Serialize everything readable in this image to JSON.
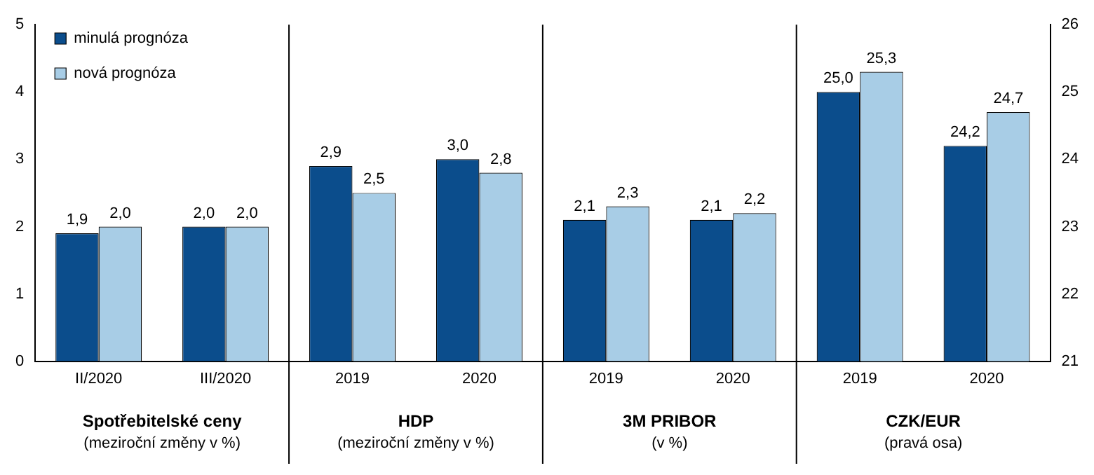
{
  "chart_data": {
    "type": "bar",
    "categories": [
      "II/2020",
      "III/2020",
      "2019",
      "2020",
      "2019",
      "2020",
      "2019",
      "2020"
    ],
    "series": [
      {
        "name": "minulá prognóza",
        "color": "#0b4d8c",
        "values": [
          1.9,
          2.0,
          2.9,
          3.0,
          2.1,
          2.1,
          null,
          null
        ],
        "value_labels": [
          "1,9",
          "2,0",
          "2,9",
          "3,0",
          "2,1",
          "2,1",
          null,
          null
        ]
      },
      {
        "name": "nová prognóza",
        "color": "#a8cde6",
        "values": [
          2.0,
          2.0,
          2.5,
          2.8,
          2.3,
          2.2,
          null,
          null
        ],
        "value_labels": [
          "2,0",
          "2,0",
          "2,5",
          "2,8",
          "2,3",
          "2,2",
          null,
          null
        ]
      },
      {
        "color": "#0b4d8c",
        "axis": "y2",
        "values": [
          null,
          null,
          null,
          null,
          null,
          null,
          25.0,
          24.2
        ],
        "value_labels": [
          null,
          null,
          null,
          null,
          null,
          null,
          "25,0",
          "24,2"
        ]
      },
      {
        "color": "#a8cde6",
        "axis": "y2",
        "values": [
          null,
          null,
          null,
          null,
          null,
          null,
          25.3,
          24.7
        ],
        "value_labels": [
          null,
          null,
          null,
          null,
          null,
          null,
          "25,3",
          "24,7"
        ]
      }
    ],
    "ylim": [
      0,
      5
    ],
    "yticks": [
      0,
      1,
      2,
      3,
      4,
      5
    ],
    "y2lim": [
      21,
      26
    ],
    "y2ticks": [
      21,
      22,
      23,
      24,
      25,
      26
    ],
    "grid": false,
    "legend": "top left",
    "annotations": [
      "Spotřebitelské ceny",
      "(meziroční změny v %)",
      "HDP",
      "(meziroční změny v %)",
      "3M PRIBOR",
      "(v %)",
      "CZK/EUR",
      "(pravá osa)"
    ]
  }
}
